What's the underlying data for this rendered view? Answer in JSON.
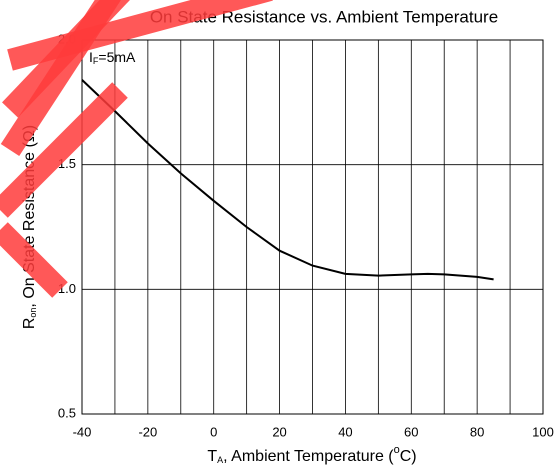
{
  "chart_data": {
    "type": "line",
    "title": "On State Resistance vs. Ambient Temperature",
    "annotation": {
      "main": "I",
      "sub": "F",
      "rest": "=5mA"
    },
    "x_label": {
      "main": "T",
      "sub": "A",
      "rest": ", Ambient Temperature (",
      "sup": "o",
      "end": "C)"
    },
    "y_label": {
      "main": "R",
      "sub": "on",
      "rest": ", On State Resistance (Ω)"
    },
    "x": [
      -40,
      -30,
      -20,
      -10,
      0,
      10,
      20,
      30,
      40,
      50,
      60,
      65,
      70,
      80,
      85
    ],
    "series": [
      {
        "name": "R",
        "color": "#000000",
        "values": [
          1.84,
          1.715,
          1.585,
          1.465,
          1.355,
          1.25,
          1.155,
          1.095,
          1.062,
          1.055,
          1.06,
          1.062,
          1.06,
          1.05,
          1.04
        ]
      }
    ],
    "xlim": [
      -40,
      100
    ],
    "xticks": [
      -40,
      -20,
      0,
      20,
      40,
      60,
      80,
      100
    ],
    "xminor": [
      -30,
      -10,
      10,
      30,
      50,
      70,
      90
    ],
    "ylim": [
      0.5,
      2.0
    ],
    "yticks": [
      {
        "value": 0.5,
        "label": "0.5"
      },
      {
        "value": 1.0,
        "label": "1.0"
      },
      {
        "value": 1.5,
        "label": "1.5"
      },
      {
        "value": 2.0,
        "label": "2.0"
      }
    ],
    "grid": true
  }
}
